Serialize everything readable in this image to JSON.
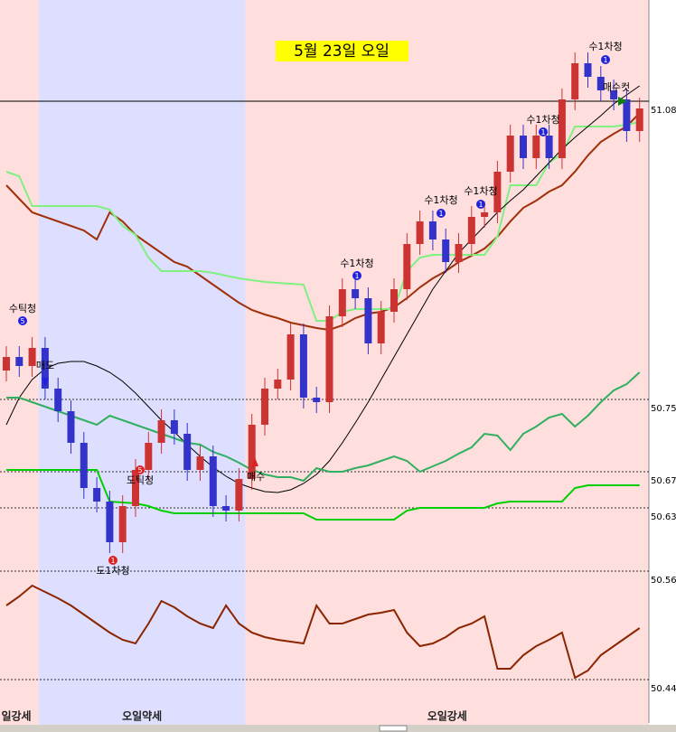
{
  "chart_data": {
    "type": "candlestick",
    "title": "5월 23일 오일",
    "ylim": [
      50.392,
      51.192
    ],
    "yticks": [
      50.44,
      50.56,
      50.63,
      50.67,
      50.75,
      51.08
    ],
    "last_price": 51.08,
    "up_color": "#cc3333",
    "down_color": "#3333cc",
    "sessions": [
      {
        "label": "일강세",
        "start": 0,
        "end": 3,
        "color": "#ffdede"
      },
      {
        "label": "오일약세",
        "start": 3,
        "end": 19,
        "color": "#dedeff"
      },
      {
        "label": "오일강세",
        "start": 19,
        "end": 50,
        "color": "#ffdede"
      }
    ],
    "open": [
      50.782,
      50.797,
      50.787,
      50.807,
      50.762,
      50.737,
      50.702,
      50.652,
      50.637,
      50.592,
      50.632,
      50.672,
      50.702,
      50.727,
      50.712,
      50.672,
      50.687,
      50.632,
      50.627,
      50.662,
      50.722,
      50.762,
      50.772,
      50.822,
      50.752,
      50.747,
      50.842,
      50.872,
      50.862,
      50.812,
      50.847,
      50.872,
      50.922,
      50.947,
      50.927,
      50.902,
      50.922,
      50.952,
      50.957,
      51.002,
      51.042,
      51.017,
      51.042,
      51.017,
      51.082,
      51.122,
      51.107,
      51.092,
      51.082,
      51.047
    ],
    "high": [
      50.809,
      50.809,
      50.819,
      50.819,
      50.774,
      50.749,
      50.714,
      50.664,
      50.649,
      50.644,
      50.684,
      50.714,
      50.739,
      50.739,
      50.724,
      50.699,
      50.699,
      50.644,
      50.674,
      50.734,
      50.774,
      50.784,
      50.834,
      50.834,
      50.764,
      50.854,
      50.884,
      50.884,
      50.874,
      50.859,
      50.884,
      50.934,
      50.959,
      50.959,
      50.939,
      50.934,
      50.964,
      50.969,
      51.014,
      51.054,
      51.054,
      51.054,
      51.054,
      51.094,
      51.134,
      51.134,
      51.119,
      51.104,
      51.094,
      51.084
    ],
    "low": [
      50.77,
      50.775,
      50.775,
      50.75,
      50.725,
      50.69,
      50.64,
      50.625,
      50.58,
      50.58,
      50.62,
      50.66,
      50.69,
      50.7,
      50.66,
      50.66,
      50.62,
      50.615,
      50.615,
      50.65,
      50.71,
      50.75,
      50.76,
      50.74,
      50.735,
      50.735,
      50.83,
      50.85,
      50.8,
      50.8,
      50.835,
      50.86,
      50.91,
      50.915,
      50.89,
      50.89,
      50.91,
      50.94,
      50.945,
      50.99,
      51.005,
      51.005,
      51.005,
      51.005,
      51.07,
      51.095,
      51.08,
      51.07,
      51.035,
      51.035
    ],
    "close": [
      50.797,
      50.787,
      50.807,
      50.762,
      50.737,
      50.702,
      50.652,
      50.637,
      50.592,
      50.632,
      50.672,
      50.702,
      50.727,
      50.712,
      50.672,
      50.687,
      50.632,
      50.627,
      50.662,
      50.722,
      50.762,
      50.772,
      50.822,
      50.752,
      50.747,
      50.842,
      50.872,
      50.862,
      50.812,
      50.847,
      50.872,
      50.922,
      50.947,
      50.927,
      50.902,
      50.922,
      50.952,
      50.957,
      51.002,
      51.042,
      51.017,
      51.042,
      51.017,
      51.082,
      51.122,
      51.107,
      51.092,
      51.082,
      51.047,
      51.072
    ],
    "series": [
      {
        "color": "#a0300a",
        "values": [
          50.987,
          50.972,
          50.957,
          50.952,
          50.947,
          50.942,
          50.937,
          50.927,
          50.957,
          50.947,
          50.932,
          50.922,
          50.912,
          50.902,
          50.897,
          50.887,
          50.877,
          50.867,
          50.857,
          50.849,
          50.844,
          50.84,
          50.835,
          50.832,
          50.829,
          50.827,
          50.832,
          50.84,
          50.845,
          50.847,
          50.852,
          50.862,
          50.874,
          50.884,
          50.892,
          50.902,
          50.909,
          50.917,
          50.93,
          50.947,
          50.962,
          50.97,
          50.98,
          50.987,
          51.002,
          51.02,
          51.035,
          51.044,
          51.052,
          51.067
        ]
      },
      {
        "color": "#80f080",
        "values": [
          51.002,
          50.997,
          50.964,
          50.964,
          50.964,
          50.964,
          50.964,
          50.964,
          50.96,
          50.942,
          50.932,
          50.907,
          50.892,
          50.892,
          50.892,
          50.892,
          50.89,
          50.887,
          50.884,
          50.882,
          50.88,
          50.879,
          50.878,
          50.877,
          50.837,
          50.837,
          50.847,
          50.85,
          50.85,
          50.85,
          50.85,
          50.892,
          50.907,
          50.91,
          50.91,
          50.91,
          50.91,
          50.91,
          50.93,
          50.987,
          50.987,
          50.987,
          51.012,
          51.022,
          51.052,
          51.052,
          51.052,
          51.052,
          51.054,
          51.057
        ]
      },
      {
        "color": "#000000",
        "values": [
          50.722,
          50.752,
          50.772,
          50.784,
          50.79,
          50.792,
          50.792,
          50.787,
          50.78,
          50.77,
          50.757,
          50.742,
          50.727,
          50.714,
          50.7,
          50.687,
          50.675,
          50.665,
          50.657,
          50.652,
          50.648,
          50.647,
          50.65,
          50.657,
          50.667,
          50.682,
          50.702,
          50.724,
          50.747,
          50.772,
          50.797,
          50.822,
          50.847,
          50.872,
          50.892,
          50.912,
          50.927,
          50.942,
          50.957,
          50.97,
          50.982,
          50.997,
          51.012,
          51.027,
          51.04,
          51.052,
          51.064,
          51.077,
          51.087,
          51.097
        ]
      },
      {
        "color": "#30b060",
        "values": [
          50.752,
          50.752,
          50.747,
          50.742,
          50.737,
          50.732,
          50.727,
          50.722,
          50.732,
          50.727,
          50.722,
          50.717,
          50.712,
          50.707,
          50.702,
          50.7,
          50.692,
          50.687,
          50.68,
          50.672,
          50.667,
          50.664,
          50.664,
          50.66,
          50.674,
          50.67,
          50.67,
          50.674,
          50.677,
          50.682,
          50.687,
          50.682,
          50.67,
          50.676,
          50.682,
          50.69,
          50.697,
          50.712,
          50.71,
          50.694,
          50.712,
          50.72,
          50.73,
          50.734,
          50.72,
          50.732,
          50.747,
          50.76,
          50.767,
          50.78
        ]
      },
      {
        "color": "#00d000",
        "values": [
          50.672,
          50.672,
          50.672,
          50.672,
          50.672,
          50.672,
          50.672,
          50.672,
          50.637,
          50.636,
          50.635,
          50.632,
          50.627,
          50.624,
          50.624,
          50.624,
          50.624,
          50.624,
          50.624,
          50.624,
          50.624,
          50.624,
          50.624,
          50.624,
          50.617,
          50.617,
          50.617,
          50.617,
          50.617,
          50.617,
          50.617,
          50.627,
          50.63,
          50.63,
          50.63,
          50.63,
          50.63,
          50.63,
          50.635,
          50.637,
          50.637,
          50.637,
          50.637,
          50.637,
          50.652,
          50.655,
          50.655,
          50.655,
          50.655,
          50.655
        ]
      },
      {
        "color": "#8b2500",
        "values": [
          50.522,
          50.532,
          50.544,
          50.537,
          50.53,
          50.522,
          50.512,
          50.502,
          50.492,
          50.484,
          50.48,
          50.502,
          50.527,
          50.52,
          50.51,
          50.502,
          50.497,
          50.522,
          50.502,
          50.492,
          50.487,
          50.484,
          50.482,
          50.48,
          50.522,
          50.502,
          50.502,
          50.507,
          50.512,
          50.514,
          50.517,
          50.492,
          50.477,
          50.48,
          50.487,
          50.497,
          50.502,
          50.51,
          50.452,
          50.452,
          50.467,
          50.477,
          50.484,
          50.492,
          50.442,
          50.45,
          50.467,
          50.477,
          50.487,
          50.497
        ]
      }
    ],
    "annotations": [
      {
        "text": "수틱청",
        "marker": "5",
        "color": "#2222dd"
      },
      {
        "text": "매도",
        "color": "#2222dd"
      },
      {
        "text": "도1차청",
        "marker": "1",
        "color": "#dd2222"
      },
      {
        "text": "도틱청",
        "marker": "5",
        "color": "#dd2222"
      },
      {
        "text": "매수",
        "color": "#dd2222"
      },
      {
        "text": "수1차청",
        "marker": "1",
        "color": "#2222dd"
      },
      {
        "text": "수1차청",
        "marker": "1",
        "color": "#2222dd"
      },
      {
        "text": "수1차청",
        "marker": "1",
        "color": "#2222dd"
      },
      {
        "text": "수1차청",
        "marker": "1",
        "color": "#2222dd"
      },
      {
        "text": "수1차청",
        "marker": "1",
        "color": "#2222dd"
      },
      {
        "text": "매수컷",
        "color": "#108010"
      }
    ]
  }
}
